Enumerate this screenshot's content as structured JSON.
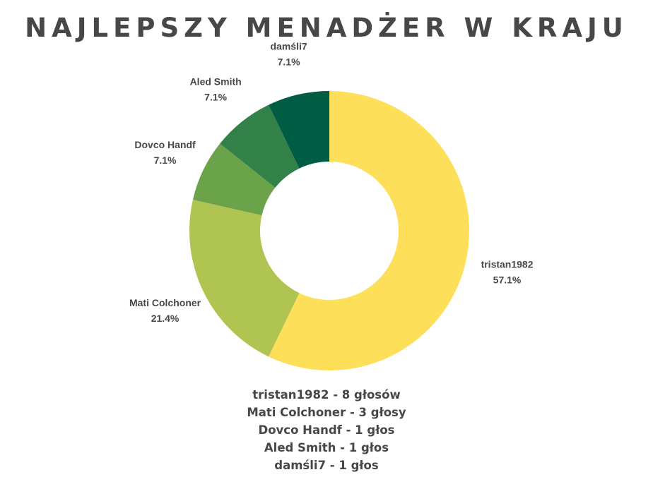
{
  "title": "NAJLEPSZY MENADŻER W KRAJU",
  "summary": [
    "tristan1982 - 8 głosów",
    "Mati Colchoner - 3 głosy",
    "Dovco Handf - 1 głos",
    "Aled Smith - 1 głos",
    "damśli7 - 1 głos"
  ],
  "chart_data": {
    "type": "pie",
    "variant": "donut",
    "title": "NAJLEPSZY MENADŻER W KRAJU",
    "categories": [
      "tristan1982",
      "Mati Colchoner",
      "Dovco Handf",
      "Aled Smith",
      "damśli7"
    ],
    "values": [
      8,
      3,
      1,
      1,
      1
    ],
    "percent_labels": [
      "57.1%",
      "21.4%",
      "7.1%",
      "7.1%",
      "7.1%"
    ],
    "colors": [
      "#fddf5a",
      "#b0c452",
      "#6aa34a",
      "#328148",
      "#005d44"
    ],
    "start_angle_deg": 0,
    "direction": "clockwise",
    "legend": "none",
    "text_color": "#474747"
  }
}
